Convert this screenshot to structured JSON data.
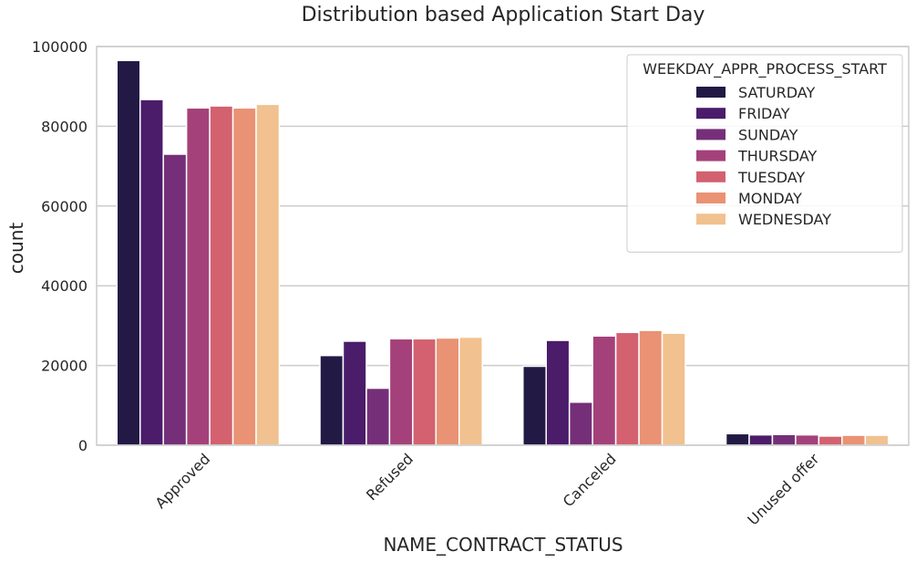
{
  "chart_data": {
    "type": "bar",
    "title": "Distribution based Application Start Day",
    "xlabel": "NAME_CONTRACT_STATUS",
    "ylabel": "count",
    "categories": [
      "Approved",
      "Refused",
      "Canceled",
      "Unused offer"
    ],
    "ylim": [
      0,
      100000
    ],
    "yticks": [
      0,
      20000,
      40000,
      60000,
      80000,
      100000
    ],
    "grid": true,
    "legend": {
      "title": "WEEKDAY_APPR_PROCESS_START",
      "placement": "top-right"
    },
    "series": [
      {
        "name": "SATURDAY",
        "color": "#221a45",
        "values": [
          96500,
          22500,
          19800,
          2900
        ]
      },
      {
        "name": "FRIDAY",
        "color": "#4b1c6a",
        "values": [
          86700,
          26100,
          26300,
          2600
        ]
      },
      {
        "name": "SUNDAY",
        "color": "#752f78",
        "values": [
          73000,
          14300,
          10800,
          2700
        ]
      },
      {
        "name": "THURSDAY",
        "color": "#a4417a",
        "values": [
          84600,
          26700,
          27400,
          2600
        ]
      },
      {
        "name": "TUESDAY",
        "color": "#d3616f",
        "values": [
          85100,
          26700,
          28300,
          2300
        ]
      },
      {
        "name": "MONDAY",
        "color": "#e99274",
        "values": [
          84600,
          26900,
          28800,
          2500
        ]
      },
      {
        "name": "WEDNESDAY",
        "color": "#f1c18f",
        "values": [
          85500,
          27100,
          28100,
          2500
        ]
      }
    ]
  }
}
